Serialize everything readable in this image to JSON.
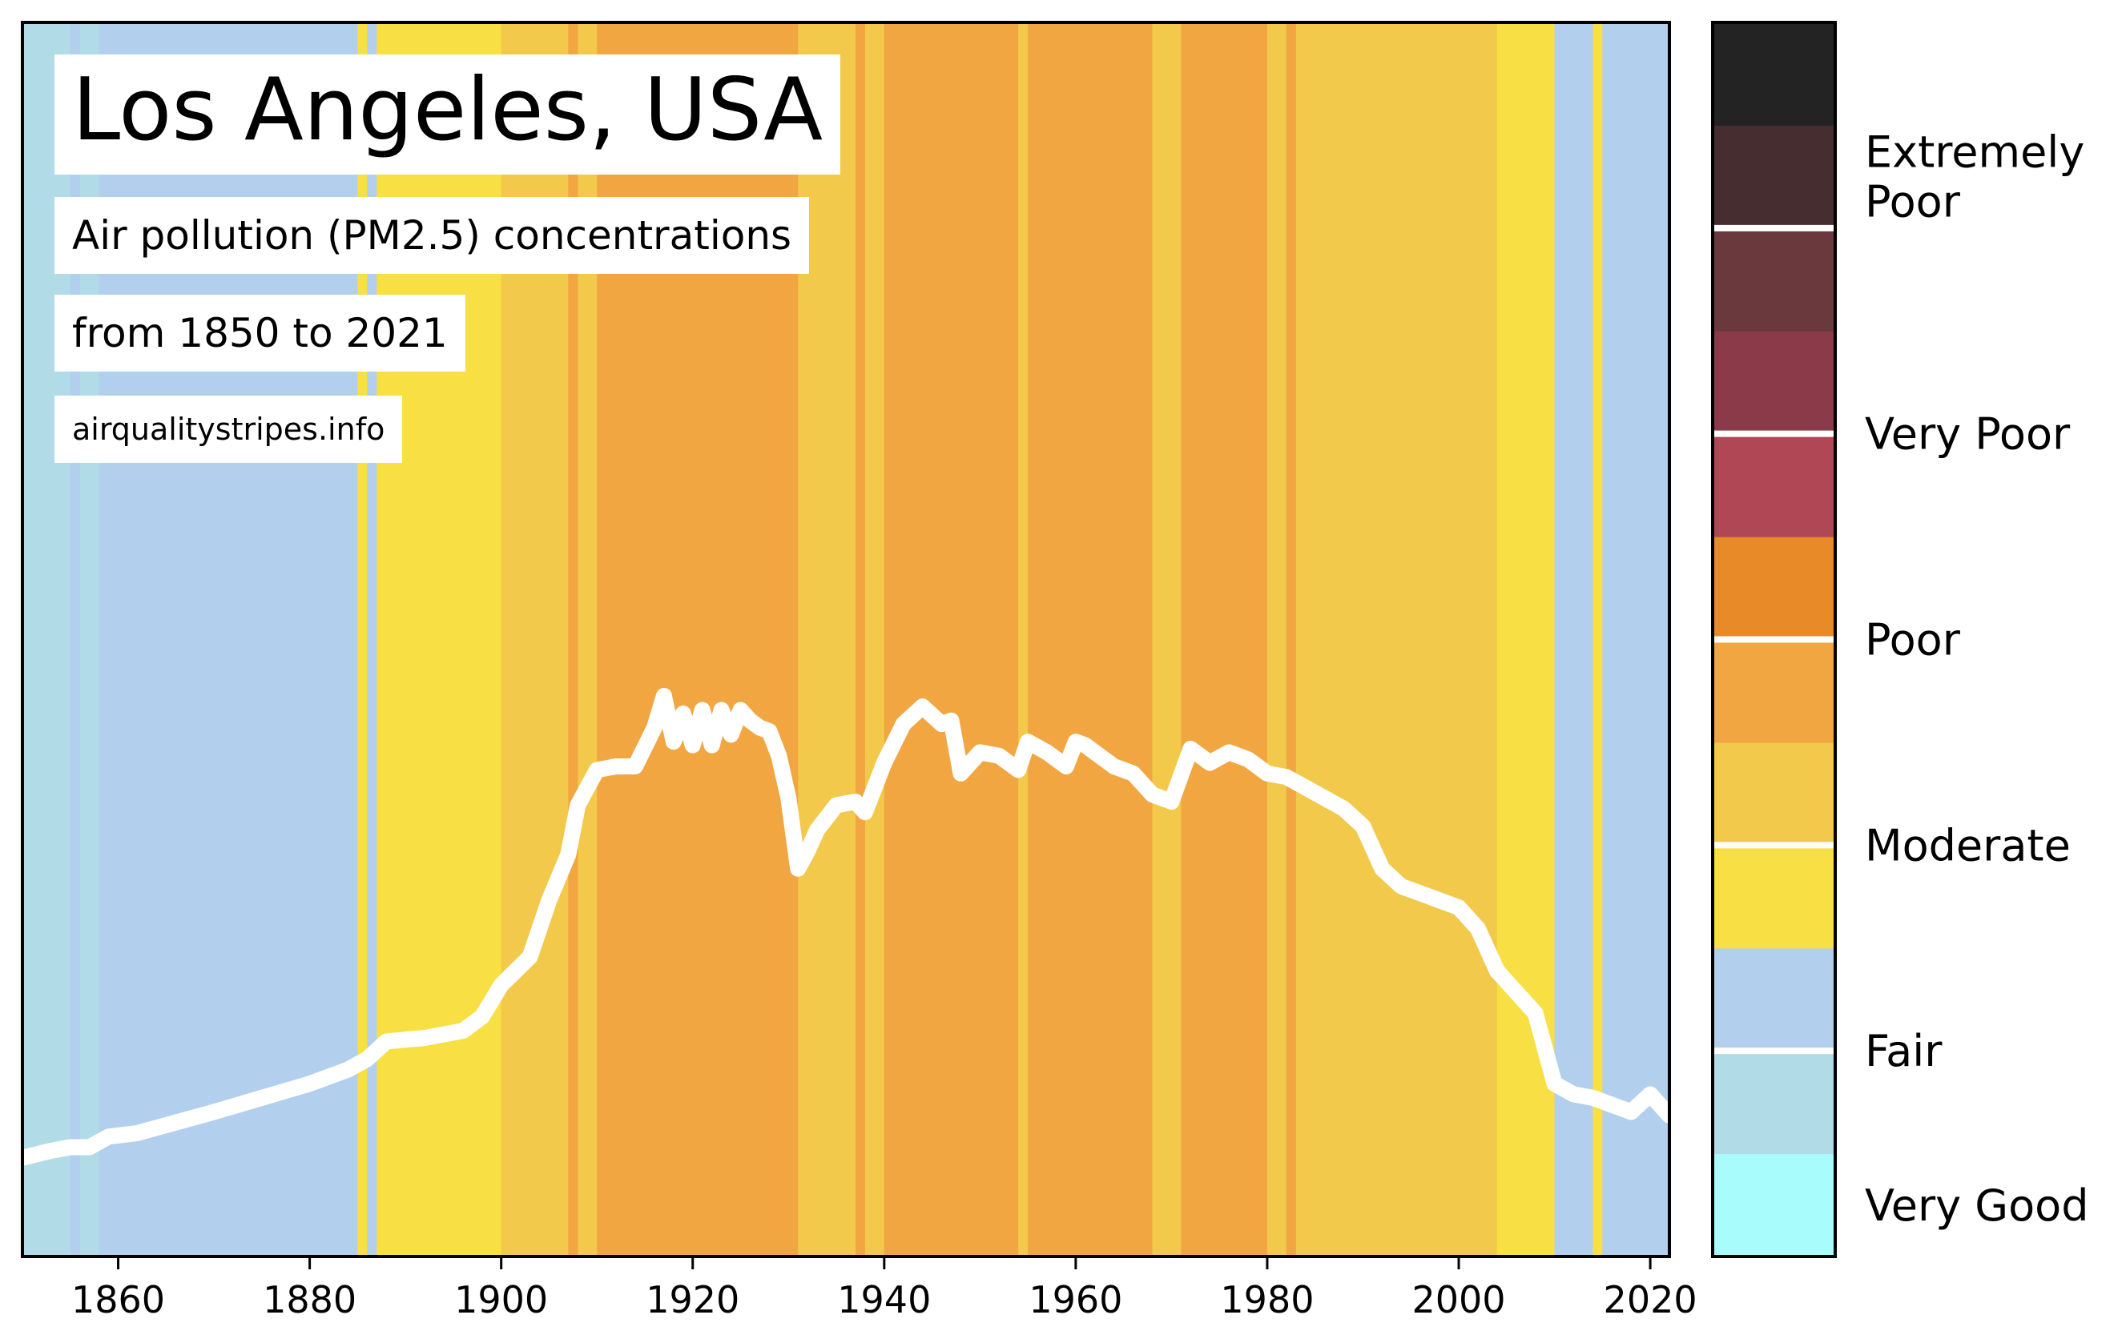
{
  "header": {
    "title": "Los Angeles, USA",
    "subtitle1": "Air pollution (PM2.5) concentrations",
    "subtitle2": "from 1850 to 2021",
    "source": "airqualitystripes.info"
  },
  "chart_data": {
    "type": "line",
    "xlim": [
      1850,
      2022
    ],
    "ylim": [
      0,
      35
    ],
    "x_ticks": [
      1860,
      1880,
      1900,
      1920,
      1940,
      1960,
      1980,
      2000,
      2020
    ],
    "grid": false,
    "legend": "colorbar-right",
    "category_colors": {
      "Very Good": "#a8fcfc",
      "Fair": "#b2dbe8",
      "Fair (upper)": "#b2cfed",
      "Moderate": "#f8df44",
      "Moderate (upper)": "#f2c94a",
      "Poor": "#f1a641",
      "Poor (upper)": "#e98a28",
      "Very Poor": "#b04755",
      "Very Poor (upper)": "#8a3a48",
      "Extremely Poor": "#6a393e",
      "Extremely Poor (upper)": "#452d30",
      "Extreme (top)": "#232323"
    },
    "stripe_segments": [
      {
        "start": 1850,
        "end": 1855,
        "color": "#b2dbe8"
      },
      {
        "start": 1855,
        "end": 1856,
        "color": "#b2cfed"
      },
      {
        "start": 1856,
        "end": 1858,
        "color": "#b2dbe8"
      },
      {
        "start": 1858,
        "end": 1885,
        "color": "#b2cfed"
      },
      {
        "start": 1885,
        "end": 1886,
        "color": "#f8df44"
      },
      {
        "start": 1886,
        "end": 1887,
        "color": "#b2cfed"
      },
      {
        "start": 1887,
        "end": 1900,
        "color": "#f8df44"
      },
      {
        "start": 1900,
        "end": 1907,
        "color": "#f2c94a"
      },
      {
        "start": 1907,
        "end": 1908,
        "color": "#f1a641"
      },
      {
        "start": 1908,
        "end": 1910,
        "color": "#f2c94a"
      },
      {
        "start": 1910,
        "end": 1931,
        "color": "#f1a641"
      },
      {
        "start": 1931,
        "end": 1937,
        "color": "#f2c94a"
      },
      {
        "start": 1937,
        "end": 1938,
        "color": "#f1a641"
      },
      {
        "start": 1938,
        "end": 1940,
        "color": "#f2c94a"
      },
      {
        "start": 1940,
        "end": 1954,
        "color": "#f1a641"
      },
      {
        "start": 1954,
        "end": 1955,
        "color": "#f2c94a"
      },
      {
        "start": 1955,
        "end": 1968,
        "color": "#f1a641"
      },
      {
        "start": 1968,
        "end": 1971,
        "color": "#f2c94a"
      },
      {
        "start": 1971,
        "end": 1980,
        "color": "#f1a641"
      },
      {
        "start": 1980,
        "end": 1982,
        "color": "#f2c94a"
      },
      {
        "start": 1982,
        "end": 1983,
        "color": "#f1a641"
      },
      {
        "start": 1983,
        "end": 2004,
        "color": "#f2c94a"
      },
      {
        "start": 2004,
        "end": 2010,
        "color": "#f8df44"
      },
      {
        "start": 2010,
        "end": 2014,
        "color": "#b2cfed"
      },
      {
        "start": 2014,
        "end": 2015,
        "color": "#f8df44"
      },
      {
        "start": 2015,
        "end": 2022,
        "color": "#b2cfed"
      }
    ],
    "line": {
      "color": "#ffffff",
      "x": [
        1850,
        1853,
        1855,
        1857,
        1859,
        1862,
        1866,
        1870,
        1875,
        1880,
        1884,
        1886,
        1888,
        1892,
        1896,
        1898,
        1900,
        1903,
        1905,
        1907,
        1908,
        1910,
        1912,
        1914,
        1916,
        1917,
        1918,
        1919,
        1920,
        1921,
        1922,
        1923,
        1924,
        1925,
        1926,
        1927,
        1928,
        1929,
        1930,
        1931,
        1932,
        1933,
        1935,
        1937,
        1938,
        1940,
        1942,
        1944,
        1946,
        1947,
        1948,
        1950,
        1952,
        1954,
        1955,
        1957,
        1958,
        1959,
        1960,
        1961,
        1962,
        1964,
        1966,
        1968,
        1970,
        1972,
        1974,
        1976,
        1978,
        1980,
        1982,
        1984,
        1986,
        1988,
        1990,
        1992,
        1994,
        1996,
        1998,
        2000,
        2002,
        2004,
        2006,
        2008,
        2010,
        2012,
        2014,
        2016,
        2018,
        2020,
        2022
      ],
      "y": [
        2.8,
        3.0,
        3.1,
        3.1,
        3.4,
        3.5,
        3.8,
        4.1,
        4.5,
        4.9,
        5.3,
        5.6,
        6.1,
        6.2,
        6.4,
        6.8,
        7.7,
        8.5,
        10.1,
        11.4,
        12.8,
        13.8,
        13.9,
        13.9,
        15.0,
        15.9,
        14.6,
        15.4,
        14.5,
        15.5,
        14.5,
        15.5,
        14.8,
        15.5,
        15.2,
        15.0,
        14.9,
        14.2,
        13.0,
        11.0,
        11.5,
        12.1,
        12.8,
        12.9,
        12.6,
        14.0,
        15.1,
        15.6,
        15.1,
        15.2,
        13.7,
        14.3,
        14.2,
        13.8,
        14.6,
        14.3,
        14.1,
        13.9,
        14.6,
        14.5,
        14.3,
        13.9,
        13.7,
        13.1,
        12.9,
        14.4,
        14.0,
        14.3,
        14.1,
        13.7,
        13.6,
        13.3,
        13.0,
        12.7,
        12.2,
        11.0,
        10.5,
        10.3,
        10.1,
        9.9,
        9.3,
        8.1,
        7.5,
        6.9,
        4.9,
        4.6,
        4.5,
        4.3,
        4.1,
        4.6,
        4.0
      ]
    },
    "colorbar": {
      "segments": [
        "#a8fcfc",
        "#b2dbe8",
        "#b2cfed",
        "#f8df44",
        "#f2c94a",
        "#f1a641",
        "#e98a28",
        "#b04755",
        "#8a3a48",
        "#6a393e",
        "#452d30",
        "#232323"
      ],
      "separators_after_segment": [
        1,
        3,
        5,
        7,
        9
      ],
      "labels": [
        {
          "text": [
            "Very Good"
          ],
          "segment": 0
        },
        {
          "text": [
            "Fair"
          ],
          "segment": 1.5
        },
        {
          "text": [
            "Moderate"
          ],
          "segment": 3.5
        },
        {
          "text": [
            "Poor"
          ],
          "segment": 5.5
        },
        {
          "text": [
            "Very Poor"
          ],
          "segment": 7.5
        },
        {
          "text": [
            "Extremely",
            "Poor"
          ],
          "segment": 10
        }
      ]
    }
  }
}
